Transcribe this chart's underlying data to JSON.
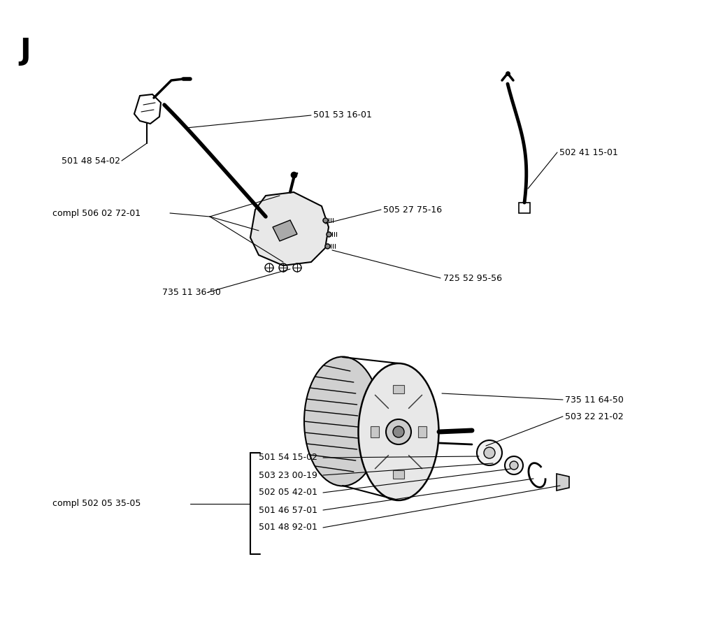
{
  "title_letter": "J",
  "bg": "#ffffff",
  "lc": "#000000",
  "tc": "#000000",
  "fs": 9.0,
  "fig_w": 10.24,
  "fig_h": 8.93,
  "dpi": 100
}
